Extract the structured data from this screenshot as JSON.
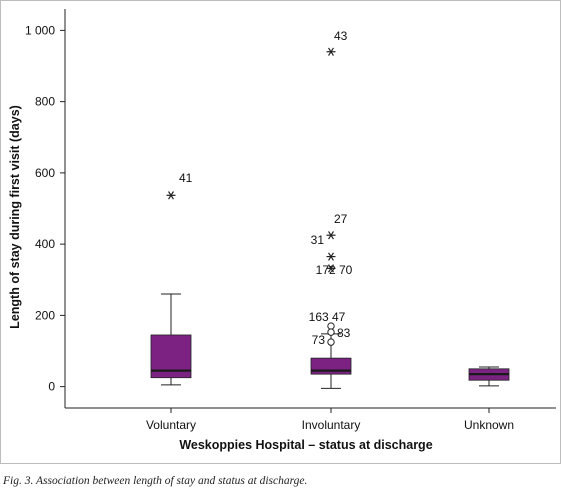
{
  "chart_data": {
    "type": "box",
    "xlabel": "Weskoppies Hospital – status at discharge",
    "ylabel": "Length of stay during first visit (days)",
    "ylim": [
      -60,
      1060
    ],
    "yticks": [
      0,
      200,
      400,
      600,
      800,
      1000
    ],
    "ytick_labels": [
      "0",
      "200",
      "400",
      "600",
      "800",
      "1 000"
    ],
    "categories": [
      "Voluntary",
      "Involuntary",
      "Unknown"
    ],
    "box_color": "#7b2283",
    "median_color": "#1a1a1a",
    "boxes": [
      {
        "category": "Voluntary",
        "whisker_low": 5,
        "q1": 25,
        "median": 45,
        "q3": 145,
        "whisker_high": 260,
        "outliers": [
          {
            "value": 537,
            "marker": "star",
            "label": "41"
          }
        ]
      },
      {
        "category": "Involuntary",
        "whisker_low": -5,
        "q1": 35,
        "median": 45,
        "q3": 80,
        "whisker_high": 148,
        "outliers": [
          {
            "value": 940,
            "marker": "star",
            "label": "43"
          },
          {
            "value": 425,
            "marker": "star",
            "label": "27"
          },
          {
            "value": 365,
            "marker": "star",
            "label": "31"
          },
          {
            "value": 332,
            "marker": "star",
            "label": "172 70"
          },
          {
            "value": 170,
            "marker": "circle",
            "label": "163 47"
          },
          {
            "value": 153,
            "marker": "circle",
            "label": "83"
          },
          {
            "value": 125,
            "marker": "circle",
            "label": "73"
          }
        ]
      },
      {
        "category": "Unknown",
        "whisker_low": 2,
        "q1": 18,
        "median": 35,
        "q3": 50,
        "whisker_high": 55,
        "outliers": []
      }
    ]
  },
  "caption": "Fig. 3. Association between length of stay and status at discharge."
}
